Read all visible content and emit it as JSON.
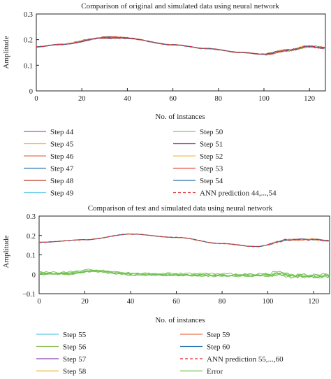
{
  "chart_data": [
    {
      "type": "line",
      "title": "Comparison of original and simulated data using neural network",
      "xlabel": "No. of instances",
      "ylabel": "Amplitude",
      "xlim": [
        0,
        127
      ],
      "ylim": [
        0.0,
        0.3
      ],
      "xticks": [
        "0",
        "20",
        "40",
        "60",
        "80",
        "100",
        "120"
      ],
      "yticks": [
        "0",
        "0.1",
        "0.2",
        "0.3"
      ],
      "legend_position": "below",
      "series": [
        {
          "name": "Step 44",
          "color": "#9b59b6",
          "peak_x": 23,
          "peak": 0.219
        },
        {
          "name": "Step 45",
          "color": "#f0b030",
          "peak_x": 24,
          "peak": 0.217
        },
        {
          "name": "Step 46",
          "color": "#e8734a",
          "peak_x": 25,
          "peak": 0.216
        },
        {
          "name": "Step 47",
          "color": "#2e75b6",
          "peak_x": 26,
          "peak": 0.215
        },
        {
          "name": "Step 48",
          "color": "#c0392b",
          "peak_x": 27,
          "peak": 0.214
        },
        {
          "name": "Step 49",
          "color": "#5ec8e8",
          "peak_x": 28,
          "peak": 0.213
        },
        {
          "name": "Step 50",
          "color": "#8fbf5a",
          "peak_x": 29,
          "peak": 0.212
        },
        {
          "name": "Step 51",
          "color": "#8e2d6b",
          "peak_x": 30,
          "peak": 0.212
        },
        {
          "name": "Step 52",
          "color": "#f5c04a",
          "peak_x": 30,
          "peak": 0.213
        },
        {
          "name": "Step 53",
          "color": "#e74c3c",
          "peak_x": 29,
          "peak": 0.214
        },
        {
          "name": "Step 54",
          "color": "#2f6fab",
          "peak_x": 28,
          "peak": 0.214
        },
        {
          "name": "ANN prediction 44,...,54",
          "color": "#e0282a",
          "dashed": true,
          "peak_x": 26,
          "peak": 0.215
        }
      ],
      "shape_points": {
        "x": [
          0,
          10,
          40,
          60,
          75,
          90,
          100,
          110,
          120,
          127
        ],
        "y": [
          0.172,
          0.18,
          0.204,
          0.18,
          0.165,
          0.15,
          0.143,
          0.158,
          0.173,
          0.168
        ]
      }
    },
    {
      "type": "line",
      "title": "Comparison of test and simulated data using neural network",
      "xlabel": "No. of instances",
      "ylabel": "Amplitude",
      "xlim": [
        0,
        127
      ],
      "ylim": [
        -0.1,
        0.3
      ],
      "xticks": [
        "0",
        "20",
        "40",
        "60",
        "80",
        "100",
        "120"
      ],
      "yticks": [
        "−0.1",
        "0",
        "0.1",
        "0.2",
        "0.3"
      ],
      "legend_position": "below",
      "series": [
        {
          "name": "Step 55",
          "color": "#5ec8e8"
        },
        {
          "name": "Step 56",
          "color": "#8fbf5a"
        },
        {
          "name": "Step 57",
          "color": "#8e44ad"
        },
        {
          "name": "Step 58",
          "color": "#f0b030"
        },
        {
          "name": "Step 59",
          "color": "#e8734a"
        },
        {
          "name": "Step 60",
          "color": "#2e75b6"
        },
        {
          "name": "ANN prediction 55,...,60",
          "color": "#e0282a",
          "dashed": true
        },
        {
          "name": "Error",
          "color": "#6cbf4a"
        }
      ],
      "shape_points": {
        "x": [
          0,
          20,
          40,
          60,
          80,
          95,
          110,
          120,
          127
        ],
        "y": [
          0.165,
          0.178,
          0.207,
          0.19,
          0.158,
          0.143,
          0.178,
          0.18,
          0.172
        ]
      },
      "error_points": {
        "x": [
          0,
          10,
          25,
          30,
          40,
          60,
          90,
          100,
          105,
          110,
          120,
          127
        ],
        "y": [
          0.005,
          0.004,
          0.018,
          0.012,
          0.0,
          -0.002,
          -0.005,
          -0.003,
          0.004,
          -0.008,
          -0.01,
          -0.008
        ]
      }
    }
  ]
}
